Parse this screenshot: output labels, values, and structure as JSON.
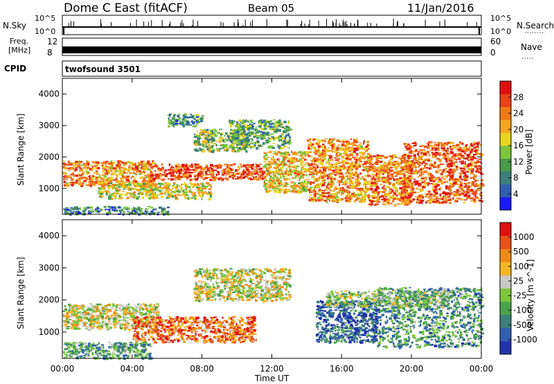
{
  "header": {
    "station": "Dome C East (fitACF)",
    "beam": "Beam 05",
    "date": "11/Jan/2016"
  },
  "strips": {
    "nsky_label": "N.Sky",
    "nsky_max": "10^5",
    "nsky_min": "10^0",
    "nsearch_label": "N.Search",
    "nsearch_max": "10^5",
    "nsearch_min": "10^0",
    "freq_label_1": "Freq.",
    "freq_label_2": "[MHz]",
    "freq_max": "12",
    "freq_min": "8",
    "nave_label": "Nave",
    "nave_max": "60",
    "nave_min": "0",
    "cpid_label": "CPID",
    "cpid_value": "twofsound 3501"
  },
  "chart_data": [
    {
      "type": "heatmap",
      "panel": "power",
      "ylabel": "Slant Range [km]",
      "xlabel": "Time UT",
      "x_ticks": [
        "00:00",
        "04:00",
        "08:00",
        "12:00",
        "16:00",
        "20:00",
        "00:00"
      ],
      "y_ticks": [
        1000,
        2000,
        3000,
        4000
      ],
      "ylim": [
        180,
        4500
      ],
      "xlim_hours": [
        0,
        24
      ],
      "colorbar": {
        "label": "Power [dB]",
        "ticks": [
          "4",
          "8",
          "12",
          "16",
          "20",
          "24",
          "28"
        ],
        "colors": [
          "#1a1aff",
          "#2f5fb0",
          "#3d7f7a",
          "#4a9a4a",
          "#7cc63c",
          "#e8d41e",
          "#f5a623",
          "#f07a16",
          "#e8421a",
          "#e01010"
        ]
      },
      "echo_regions": [
        {
          "t0": 0.0,
          "t1": 5.2,
          "r0": 1100,
          "r1": 1900,
          "level": 0.7
        },
        {
          "t0": 5.0,
          "t1": 11.5,
          "r0": 1300,
          "r1": 1800,
          "level": 0.85
        },
        {
          "t0": 7.5,
          "t1": 10.5,
          "r0": 2200,
          "r1": 2900,
          "level": 0.45
        },
        {
          "t0": 9.5,
          "t1": 13.0,
          "r0": 2300,
          "r1": 3200,
          "level": 0.35
        },
        {
          "t0": 2.0,
          "t1": 8.5,
          "r0": 700,
          "r1": 1200,
          "level": 0.55
        },
        {
          "t0": 11.5,
          "t1": 14.0,
          "r0": 900,
          "r1": 2200,
          "level": 0.6
        },
        {
          "t0": 14.0,
          "t1": 17.5,
          "r0": 600,
          "r1": 2600,
          "level": 0.7
        },
        {
          "t0": 17.5,
          "t1": 20.0,
          "r0": 500,
          "r1": 2100,
          "level": 0.75
        },
        {
          "t0": 19.5,
          "t1": 24.0,
          "r0": 550,
          "r1": 2500,
          "level": 0.8
        },
        {
          "t0": 0.0,
          "t1": 6.0,
          "r0": 200,
          "r1": 450,
          "level": 0.25
        },
        {
          "t0": 6.0,
          "t1": 8.0,
          "r0": 3000,
          "r1": 3400,
          "level": 0.3
        }
      ]
    },
    {
      "type": "heatmap",
      "panel": "velocity",
      "ylabel": "Slant Range [km]",
      "xlabel": "Time UT",
      "x_ticks": [
        "00:00",
        "04:00",
        "08:00",
        "12:00",
        "16:00",
        "20:00",
        "00:00"
      ],
      "y_ticks": [
        1000,
        2000,
        3000,
        4000
      ],
      "ylim": [
        180,
        4500
      ],
      "xlim_hours": [
        0,
        24
      ],
      "colorbar": {
        "label": "Velocity [m s^-1]",
        "ticks": [
          "1000",
          "500",
          "100",
          "25",
          "-25",
          "-100",
          "-500",
          "-1000"
        ],
        "colors": [
          "#2233aa",
          "#2f5fb0",
          "#3d7f7a",
          "#4aa34a",
          "#7cc63c",
          "#c8c8c4",
          "#f5b623",
          "#f08a16",
          "#e8521a",
          "#e01010"
        ]
      },
      "echo_regions": [
        {
          "t0": 0.0,
          "t1": 5.5,
          "r0": 1100,
          "r1": 1900,
          "level": 0.55
        },
        {
          "t0": 4.0,
          "t1": 11.0,
          "r0": 700,
          "r1": 1500,
          "level": 0.8
        },
        {
          "t0": 7.5,
          "t1": 13.0,
          "r0": 2000,
          "r1": 3000,
          "level": 0.55
        },
        {
          "t0": 0.0,
          "t1": 5.0,
          "r0": 200,
          "r1": 700,
          "level": 0.35
        },
        {
          "t0": 14.5,
          "t1": 18.0,
          "r0": 700,
          "r1": 2000,
          "level": 0.15
        },
        {
          "t0": 18.0,
          "t1": 24.0,
          "r0": 550,
          "r1": 2400,
          "level": 0.3
        },
        {
          "t0": 15.0,
          "t1": 22.0,
          "r0": 1800,
          "r1": 2300,
          "level": 0.45
        }
      ]
    }
  ]
}
